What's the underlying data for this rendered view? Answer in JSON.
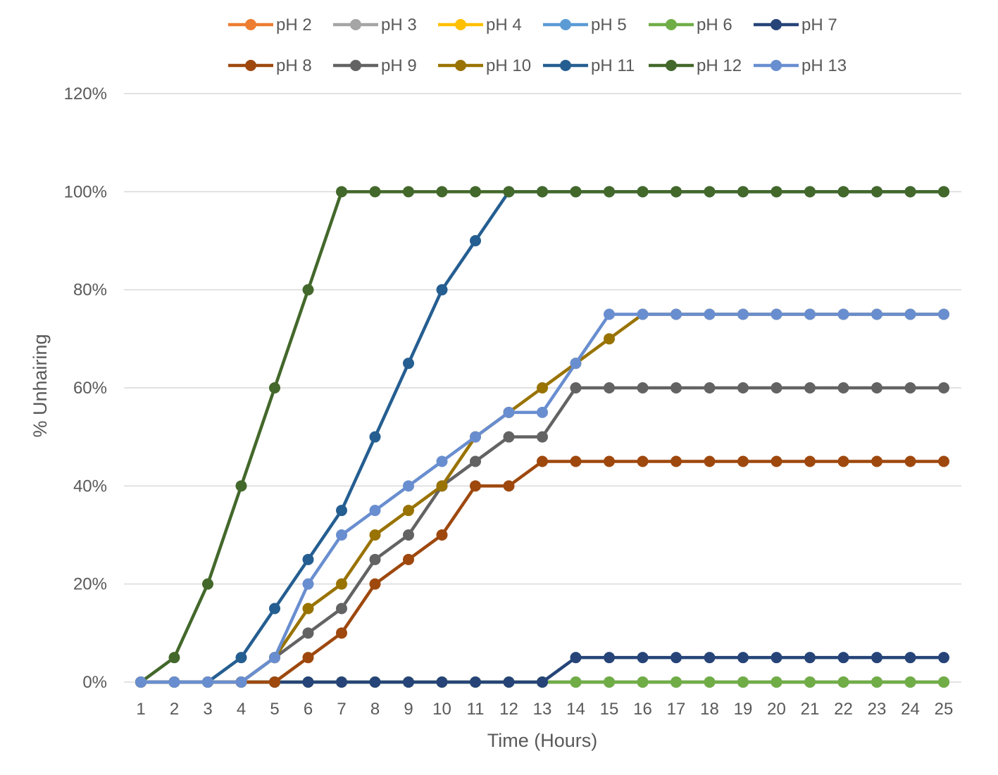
{
  "chart_data": {
    "type": "line",
    "title": "",
    "xlabel": "Time (Hours)",
    "ylabel": "% Unhairing",
    "x": [
      1,
      2,
      3,
      4,
      5,
      6,
      7,
      8,
      9,
      10,
      11,
      12,
      13,
      14,
      15,
      16,
      17,
      18,
      19,
      20,
      21,
      22,
      23,
      24,
      25
    ],
    "x_tick_labels": [
      "1",
      "2",
      "3",
      "4",
      "5",
      "6",
      "7",
      "8",
      "9",
      "10",
      "11",
      "12",
      "13",
      "14",
      "15",
      "16",
      "17",
      "18",
      "19",
      "20",
      "21",
      "22",
      "23",
      "24",
      "25"
    ],
    "ylim": [
      0,
      120
    ],
    "y_ticks": [
      0,
      20,
      40,
      60,
      80,
      100,
      120
    ],
    "y_tick_labels": [
      "0%",
      "20%",
      "40%",
      "60%",
      "80%",
      "100%",
      "120%"
    ],
    "grid": true,
    "legend_position": "top",
    "series": [
      {
        "name": "pH 2",
        "color": "#ed7d31",
        "values": [
          0,
          0,
          0,
          0,
          0,
          0,
          0,
          0,
          0,
          0,
          0,
          0,
          0,
          0,
          0,
          0,
          0,
          0,
          0,
          0,
          0,
          0,
          0,
          0,
          0
        ]
      },
      {
        "name": "pH 3",
        "color": "#a5a5a5",
        "values": [
          0,
          0,
          0,
          0,
          0,
          0,
          0,
          0,
          0,
          0,
          0,
          0,
          0,
          0,
          0,
          0,
          0,
          0,
          0,
          0,
          0,
          0,
          0,
          0,
          0
        ]
      },
      {
        "name": "pH 4",
        "color": "#ffc000",
        "values": [
          0,
          0,
          0,
          0,
          0,
          0,
          0,
          0,
          0,
          0,
          0,
          0,
          0,
          0,
          0,
          0,
          0,
          0,
          0,
          0,
          0,
          0,
          0,
          0,
          0
        ]
      },
      {
        "name": "pH 5",
        "color": "#5b9bd5",
        "values": [
          0,
          0,
          0,
          0,
          0,
          0,
          0,
          0,
          0,
          0,
          0,
          0,
          0,
          0,
          0,
          0,
          0,
          0,
          0,
          0,
          0,
          0,
          0,
          0,
          0
        ]
      },
      {
        "name": "pH 6",
        "color": "#70ad47",
        "values": [
          0,
          0,
          0,
          0,
          0,
          0,
          0,
          0,
          0,
          0,
          0,
          0,
          0,
          0,
          0,
          0,
          0,
          0,
          0,
          0,
          0,
          0,
          0,
          0,
          0
        ]
      },
      {
        "name": "pH 7",
        "color": "#264478",
        "values": [
          0,
          0,
          0,
          0,
          0,
          0,
          0,
          0,
          0,
          0,
          0,
          0,
          0,
          5,
          5,
          5,
          5,
          5,
          5,
          5,
          5,
          5,
          5,
          5,
          5
        ]
      },
      {
        "name": "pH 8",
        "color": "#9e480e",
        "values": [
          0,
          0,
          0,
          0,
          0,
          5,
          10,
          20,
          25,
          30,
          40,
          40,
          45,
          45,
          45,
          45,
          45,
          45,
          45,
          45,
          45,
          45,
          45,
          45,
          45
        ]
      },
      {
        "name": "pH 9",
        "color": "#636363",
        "values": [
          0,
          0,
          0,
          0,
          5,
          10,
          15,
          25,
          30,
          40,
          45,
          50,
          50,
          60,
          60,
          60,
          60,
          60,
          60,
          60,
          60,
          60,
          60,
          60,
          60
        ]
      },
      {
        "name": "pH 10",
        "color": "#997300",
        "values": [
          0,
          0,
          0,
          0,
          5,
          15,
          20,
          30,
          35,
          40,
          50,
          55,
          60,
          65,
          70,
          75,
          75,
          75,
          75,
          75,
          75,
          75,
          75,
          75,
          75
        ]
      },
      {
        "name": "pH 11",
        "color": "#255e91",
        "values": [
          0,
          0,
          0,
          5,
          15,
          25,
          35,
          50,
          65,
          80,
          90,
          100,
          100,
          100,
          100,
          100,
          100,
          100,
          100,
          100,
          100,
          100,
          100,
          100,
          100
        ]
      },
      {
        "name": "pH 12",
        "color": "#43682b",
        "values": [
          0,
          5,
          20,
          40,
          60,
          80,
          100,
          100,
          100,
          100,
          100,
          100,
          100,
          100,
          100,
          100,
          100,
          100,
          100,
          100,
          100,
          100,
          100,
          100,
          100
        ]
      },
      {
        "name": "pH 13",
        "color": "#698ed0",
        "values": [
          0,
          0,
          0,
          0,
          5,
          20,
          30,
          35,
          40,
          45,
          50,
          55,
          55,
          65,
          75,
          75,
          75,
          75,
          75,
          75,
          75,
          75,
          75,
          75,
          75
        ]
      }
    ]
  }
}
